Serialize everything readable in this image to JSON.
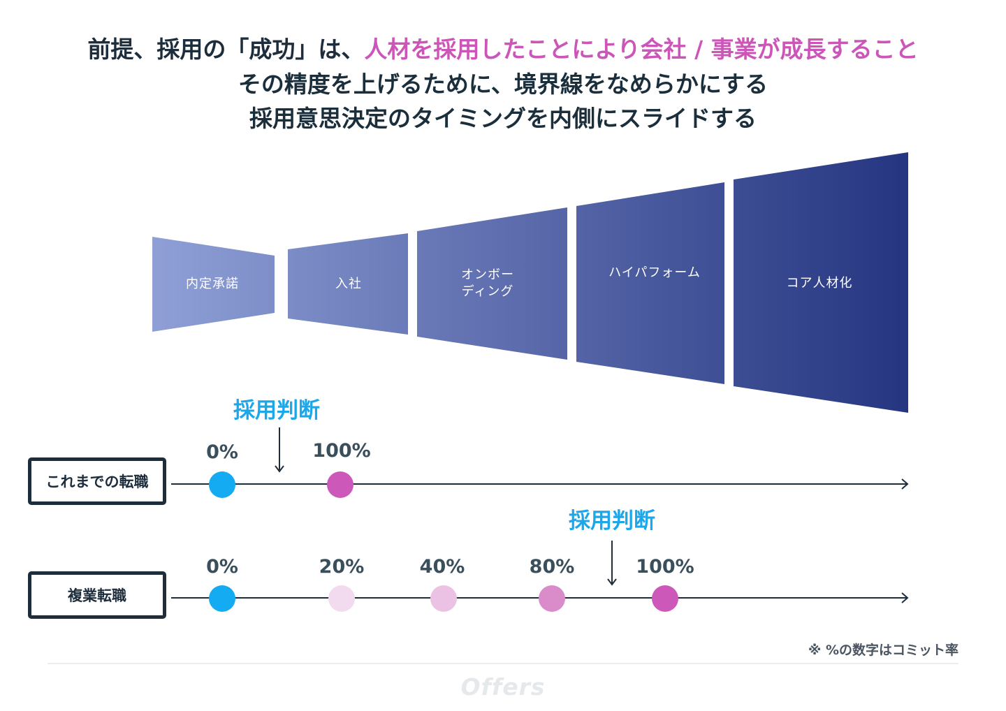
{
  "headline": {
    "line1_dark": "前提、採用の「成功」は、",
    "line1_accent": "人材を採用したことにより会社 / 事業が成長すること",
    "line2": "その精度を上げるために、境界線をなめらかにする",
    "line3": "採用意思決定のタイミングを内側にスライドする"
  },
  "funnel": {
    "stages": [
      {
        "label": "内定承諾"
      },
      {
        "label": "入社"
      },
      {
        "label": "オンボー\nディング"
      },
      {
        "label": "ハイパフォーム"
      },
      {
        "label": "コア人材化"
      }
    ],
    "colors": {
      "start": "#8f9fd6",
      "end": "#253580"
    }
  },
  "rows": [
    {
      "label": "これまでの転職",
      "decision_label": "採用判断",
      "points": [
        {
          "pct": "0%",
          "color": "#14abf2"
        },
        {
          "pct": "100%",
          "color": "#cc59b9"
        }
      ]
    },
    {
      "label": "複業転職",
      "decision_label": "採用判断",
      "points": [
        {
          "pct": "0%",
          "color": "#14abf2"
        },
        {
          "pct": "20%",
          "color": "#f3dbef"
        },
        {
          "pct": "40%",
          "color": "#ecc2e4"
        },
        {
          "pct": "80%",
          "color": "#d98cc9"
        },
        {
          "pct": "100%",
          "color": "#cc59b9"
        }
      ]
    }
  ],
  "note": "※ %の数字はコミット率",
  "logo": "Offers"
}
